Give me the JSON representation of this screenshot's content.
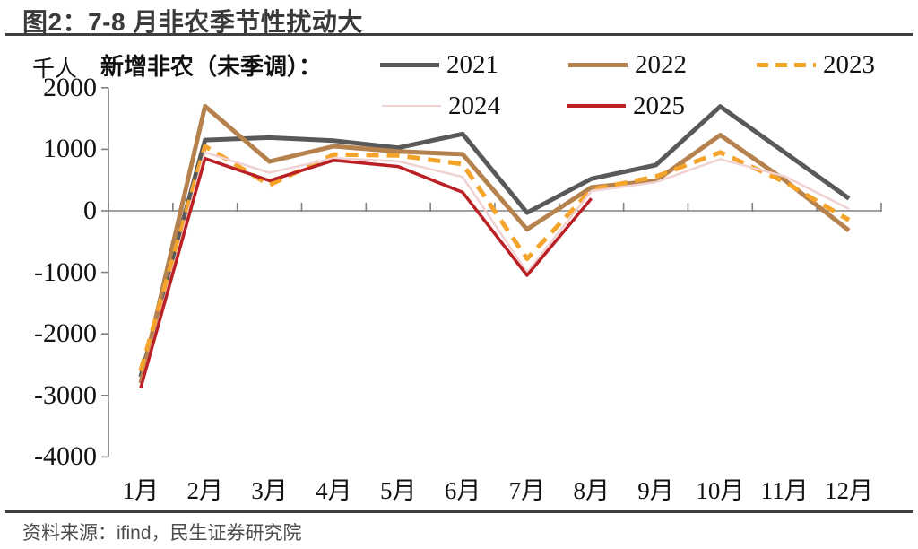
{
  "page": {
    "title": "图2：7-8 月非农季节性扰动大",
    "source": "资料来源：ifind，民生证券研究院"
  },
  "chart_data": {
    "type": "line",
    "legend_title": "新增非农（未季调）：",
    "unit_label": "千人",
    "categories": [
      "1月",
      "2月",
      "3月",
      "4月",
      "5月",
      "6月",
      "7月",
      "8月",
      "9月",
      "10月",
      "11月",
      "12月"
    ],
    "ylim": [
      -4000,
      2000
    ],
    "yticks": [
      2000,
      1000,
      0,
      -1000,
      -2000,
      -3000,
      -4000
    ],
    "grid": false,
    "legend_position": "top",
    "axis_color": "#808080",
    "series": [
      {
        "name": "2021",
        "color": "#595959",
        "style": "solid",
        "width": 5,
        "values": [
          -2700,
          1150,
          1190,
          1140,
          1025,
          1250,
          -30,
          520,
          745,
          1695,
          950,
          200
        ]
      },
      {
        "name": "2022",
        "color": "#B5824E",
        "style": "solid",
        "width": 5,
        "values": [
          -2800,
          1700,
          800,
          1050,
          965,
          920,
          -300,
          380,
          490,
          1230,
          500,
          -320
        ]
      },
      {
        "name": "2023",
        "color": "#F5A42B",
        "style": "dashed",
        "width": 5,
        "values": [
          -2600,
          1050,
          420,
          915,
          900,
          760,
          -780,
          345,
          555,
          950,
          470,
          -150
        ]
      },
      {
        "name": "2024",
        "color": "#F0D2D2",
        "style": "solid",
        "width": 2.5,
        "values": [
          -2850,
          950,
          620,
          855,
          805,
          550,
          -1000,
          320,
          465,
          840,
          560,
          30
        ]
      },
      {
        "name": "2025",
        "color": "#BB2025",
        "style": "solid",
        "width": 3.5,
        "values": [
          -2880,
          850,
          490,
          820,
          720,
          300,
          -1050,
          200,
          null,
          null,
          null,
          null
        ]
      }
    ]
  }
}
